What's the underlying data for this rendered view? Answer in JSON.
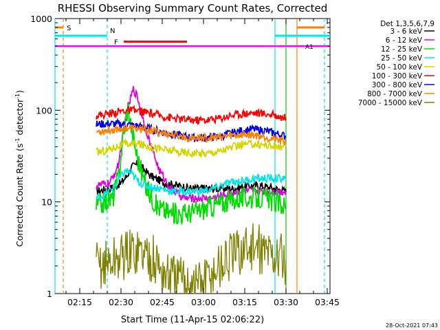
{
  "chart_data": {
    "type": "line",
    "title": "RHESSI Observing Summary Count Rates, Corrected",
    "xlabel": "Start Time (11-Apr-15 02:06:22)",
    "ylabel_main": "Corrected Count Rate (s",
    "ylabel_sup1": "-1",
    "ylabel_mid": " detector",
    "ylabel_sup2": "-1",
    "ylabel_end": ")",
    "yscale": "log",
    "ylim": [
      1,
      1000
    ],
    "xlim_minutes": [
      0,
      100
    ],
    "x_ticks": [
      {
        "m": 9,
        "label": "02:15"
      },
      {
        "m": 24,
        "label": "02:30"
      },
      {
        "m": 39,
        "label": "02:45"
      },
      {
        "m": 54,
        "label": "03:00"
      },
      {
        "m": 69,
        "label": "03:15"
      },
      {
        "m": 84,
        "label": "03:30"
      },
      {
        "m": 99,
        "label": "03:45"
      }
    ],
    "y_ticks": [
      {
        "v": 1,
        "label": "1"
      },
      {
        "v": 10,
        "label": "10"
      },
      {
        "v": 100,
        "label": "100"
      },
      {
        "v": 1000,
        "label": "1000"
      }
    ],
    "legend_title": "Det 1,3,5,6,7,9",
    "series": [
      {
        "name": "3 - 6 keV",
        "color": "#000000",
        "points": [
          [
            15,
            13
          ],
          [
            20,
            14
          ],
          [
            24,
            16
          ],
          [
            26,
            19
          ],
          [
            28,
            24
          ],
          [
            30,
            26
          ],
          [
            32,
            23
          ],
          [
            35,
            19
          ],
          [
            40,
            16
          ],
          [
            45,
            15
          ],
          [
            50,
            14
          ],
          [
            55,
            14
          ],
          [
            60,
            14
          ],
          [
            65,
            14
          ],
          [
            70,
            15
          ],
          [
            75,
            15
          ],
          [
            80,
            14
          ],
          [
            84,
            13
          ]
        ]
      },
      {
        "name": "6 - 12 keV",
        "color": "#e000e0",
        "points": [
          [
            15,
            15
          ],
          [
            20,
            16
          ],
          [
            23,
            25
          ],
          [
            25,
            60
          ],
          [
            27,
            120
          ],
          [
            28.5,
            170
          ],
          [
            30,
            140
          ],
          [
            32,
            80
          ],
          [
            35,
            40
          ],
          [
            38,
            22
          ],
          [
            42,
            14
          ],
          [
            47,
            11
          ],
          [
            52,
            11
          ],
          [
            57,
            11
          ],
          [
            62,
            12
          ],
          [
            67,
            13
          ],
          [
            72,
            13
          ],
          [
            78,
            13
          ],
          [
            84,
            13
          ]
        ]
      },
      {
        "name": "12 - 25 keV",
        "color": "#00dd00",
        "points": [
          [
            15,
            9
          ],
          [
            18,
            10
          ],
          [
            21,
            11
          ],
          [
            23,
            18
          ],
          [
            25,
            60
          ],
          [
            26.5,
            110
          ],
          [
            28,
            60
          ],
          [
            30,
            30
          ],
          [
            33,
            15
          ],
          [
            37,
            9
          ],
          [
            42,
            7.5
          ],
          [
            47,
            7.5
          ],
          [
            52,
            8
          ],
          [
            57,
            9
          ],
          [
            62,
            10
          ],
          [
            67,
            11
          ],
          [
            71,
            11
          ],
          [
            76,
            11
          ],
          [
            80,
            10
          ],
          [
            84,
            9
          ]
        ]
      },
      {
        "name": "25 - 50 keV",
        "color": "#00e6e6",
        "points": [
          [
            15,
            11
          ],
          [
            18,
            12
          ],
          [
            21,
            14
          ],
          [
            24,
            19
          ],
          [
            26,
            22
          ],
          [
            28,
            20
          ],
          [
            30,
            17
          ],
          [
            33,
            15
          ],
          [
            38,
            14
          ],
          [
            43,
            13
          ],
          [
            48,
            13
          ],
          [
            53,
            13
          ],
          [
            58,
            14
          ],
          [
            63,
            16
          ],
          [
            68,
            17
          ],
          [
            73,
            18
          ],
          [
            78,
            18
          ],
          [
            84,
            18
          ]
        ]
      },
      {
        "name": "50 - 100 keV",
        "color": "#d4d400",
        "points": [
          [
            15,
            35
          ],
          [
            18,
            36
          ],
          [
            22,
            40
          ],
          [
            26,
            43
          ],
          [
            30,
            43
          ],
          [
            35,
            40
          ],
          [
            40,
            37
          ],
          [
            45,
            35
          ],
          [
            50,
            34
          ],
          [
            55,
            34
          ],
          [
            60,
            36
          ],
          [
            64,
            39
          ],
          [
            68,
            42
          ],
          [
            72,
            43
          ],
          [
            76,
            42
          ],
          [
            80,
            40
          ],
          [
            84,
            40
          ]
        ]
      },
      {
        "name": "100 - 300 keV",
        "color": "#ff0000",
        "points": [
          [
            15,
            88
          ],
          [
            18,
            90
          ],
          [
            22,
            95
          ],
          [
            26,
            100
          ],
          [
            30,
            98
          ],
          [
            35,
            92
          ],
          [
            40,
            85
          ],
          [
            45,
            80
          ],
          [
            50,
            78
          ],
          [
            55,
            78
          ],
          [
            60,
            82
          ],
          [
            64,
            88
          ],
          [
            68,
            92
          ],
          [
            72,
            94
          ],
          [
            76,
            92
          ],
          [
            80,
            88
          ],
          [
            84,
            82
          ]
        ]
      },
      {
        "name": "300 - 800 keV",
        "color": "#0000ee",
        "points": [
          [
            15,
            70
          ],
          [
            18,
            71
          ],
          [
            22,
            71
          ],
          [
            26,
            70
          ],
          [
            30,
            67
          ],
          [
            35,
            62
          ],
          [
            40,
            57
          ],
          [
            45,
            53
          ],
          [
            50,
            50
          ],
          [
            55,
            50
          ],
          [
            60,
            52
          ],
          [
            64,
            56
          ],
          [
            68,
            60
          ],
          [
            72,
            62
          ],
          [
            76,
            60
          ],
          [
            80,
            56
          ],
          [
            84,
            52
          ]
        ]
      },
      {
        "name": "800 - 7000 keV",
        "color": "#ff8000",
        "points": [
          [
            15,
            58
          ],
          [
            18,
            60
          ],
          [
            22,
            62
          ],
          [
            26,
            64
          ],
          [
            30,
            63
          ],
          [
            35,
            60
          ],
          [
            40,
            56
          ],
          [
            45,
            52
          ],
          [
            50,
            50
          ],
          [
            55,
            50
          ],
          [
            60,
            51
          ],
          [
            64,
            53
          ],
          [
            68,
            54
          ],
          [
            72,
            54
          ],
          [
            76,
            52
          ],
          [
            80,
            48
          ],
          [
            84,
            45
          ]
        ]
      },
      {
        "name": "7000 - 15000 keV",
        "color": "#808000",
        "points": [
          [
            15,
            2
          ],
          [
            20,
            2.2
          ],
          [
            25,
            2.6
          ],
          [
            30,
            3
          ],
          [
            35,
            2.5
          ],
          [
            40,
            1.6
          ],
          [
            45,
            1.4
          ],
          [
            50,
            1.3
          ],
          [
            55,
            1.4
          ],
          [
            60,
            2.0
          ],
          [
            65,
            2.6
          ],
          [
            70,
            3.2
          ],
          [
            75,
            3.0
          ],
          [
            80,
            2.6
          ],
          [
            84,
            2.3
          ]
        ]
      }
    ],
    "attenuator_line": {
      "label": "A1",
      "color": "#ff00ff",
      "value": 500,
      "x": [
        0,
        100
      ]
    },
    "flags": [
      {
        "label": "S",
        "color": "#ff8000",
        "y": 800,
        "segments": [
          [
            0,
            3
          ]
        ]
      },
      {
        "label": "N",
        "color": "#00e6e6",
        "y": 650,
        "segments": [
          [
            0,
            19
          ],
          [
            80,
            100
          ]
        ]
      },
      {
        "label": "F",
        "color": "#ff0000",
        "y": 560,
        "segments": [
          [
            25,
            48
          ]
        ]
      },
      {
        "label": "",
        "color": "#ff8000",
        "y": 800,
        "segments": [
          [
            88,
            98
          ]
        ]
      }
    ],
    "vertical_lines": [
      {
        "m": 0,
        "color": "#00e6e6",
        "style": "solid"
      },
      {
        "m": 3,
        "color": "#ff8000",
        "style": "dashed"
      },
      {
        "m": 19,
        "color": "#00e6e6",
        "style": "dashed"
      },
      {
        "m": 80,
        "color": "#00e6e6",
        "style": "solid"
      },
      {
        "m": 84,
        "color": "#00cc00",
        "style": "solid"
      },
      {
        "m": 88,
        "color": "#ff8000",
        "style": "solid"
      },
      {
        "m": 98,
        "color": "#00e6e6",
        "style": "dashed"
      }
    ],
    "footer_date": "28-Oct-2021 07:43"
  }
}
